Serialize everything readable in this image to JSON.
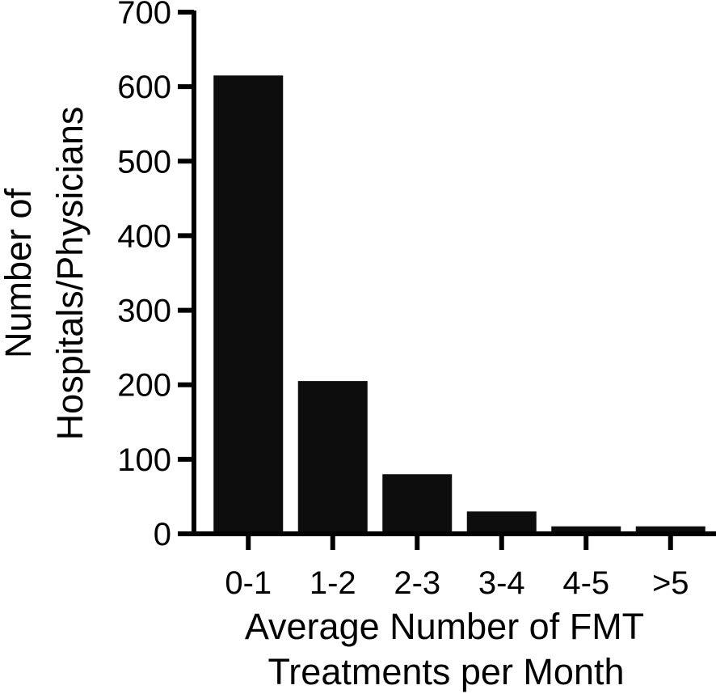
{
  "chart_data": {
    "type": "bar",
    "categories": [
      "0-1",
      "1-2",
      "2-3",
      "3-4",
      "4-5",
      ">5"
    ],
    "values": [
      615,
      205,
      80,
      30,
      10,
      10
    ],
    "ylim": [
      0,
      700
    ],
    "yticks": [
      0,
      100,
      200,
      300,
      400,
      500,
      600,
      700
    ],
    "ylabel_lines": [
      "Number of",
      "Hospitals/Physicians"
    ],
    "xlabel_lines": [
      "Average Number of FMT",
      "Treatments per Month"
    ],
    "grid": false,
    "legend": "none",
    "bar_color": "#0d0d0d",
    "axis_color": "#000000"
  }
}
